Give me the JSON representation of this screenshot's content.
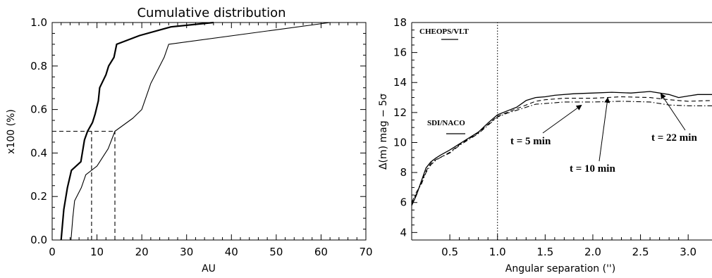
{
  "chart_data": [
    {
      "type": "line",
      "title": "Cumulative distribution",
      "xlabel": "AU",
      "ylabel": "x100 (%)",
      "xlim": [
        0,
        70
      ],
      "ylim": [
        0,
        1
      ],
      "xticks": [
        0,
        10,
        20,
        30,
        40,
        50,
        60,
        70
      ],
      "yticks": [
        0.0,
        0.2,
        0.4,
        0.6,
        0.8,
        1.0
      ],
      "xtick_labels": [
        "0",
        "10",
        "20",
        "30",
        "40",
        "50",
        "60",
        "70"
      ],
      "ytick_labels": [
        "0.0",
        "0.2",
        "0.4",
        "0.6",
        "0.8",
        "1.0"
      ],
      "grid": false,
      "series": [
        {
          "style": "thick-solid",
          "points": [
            [
              2,
              0
            ],
            [
              2.6,
              0.14
            ],
            [
              3.4,
              0.24
            ],
            [
              4.3,
              0.32
            ],
            [
              6.4,
              0.36
            ],
            [
              7.2,
              0.46
            ],
            [
              7.9,
              0.5
            ],
            [
              9,
              0.54
            ],
            [
              9.6,
              0.58
            ],
            [
              10.3,
              0.64
            ],
            [
              10.6,
              0.7
            ],
            [
              12,
              0.76
            ],
            [
              12.6,
              0.8
            ],
            [
              13.8,
              0.84
            ],
            [
              14.4,
              0.9
            ],
            [
              19.5,
              0.94
            ],
            [
              26.5,
              0.98
            ],
            [
              36,
              1.0
            ]
          ]
        },
        {
          "style": "thin-solid",
          "points": [
            [
              4.2,
              0
            ],
            [
              4.6,
              0.1
            ],
            [
              5,
              0.18
            ],
            [
              6.5,
              0.24
            ],
            [
              7.5,
              0.3
            ],
            [
              10,
              0.34
            ],
            [
              12.5,
              0.42
            ],
            [
              14,
              0.5
            ],
            [
              18,
              0.56
            ],
            [
              20,
              0.6
            ],
            [
              21,
              0.66
            ],
            [
              22,
              0.72
            ],
            [
              23,
              0.76
            ],
            [
              24,
              0.8
            ],
            [
              25,
              0.84
            ],
            [
              26,
              0.9
            ],
            [
              62,
              1.0
            ]
          ]
        },
        {
          "style": "dashed",
          "points": [
            [
              0,
              0.5
            ],
            [
              14,
              0.5
            ]
          ]
        },
        {
          "style": "dashed",
          "points": [
            [
              8.8,
              0
            ],
            [
              8.8,
              0.5
            ]
          ]
        },
        {
          "style": "dashed",
          "points": [
            [
              14,
              0
            ],
            [
              14,
              0.5
            ]
          ]
        }
      ]
    },
    {
      "type": "line",
      "title": "",
      "xlabel": "Angular separation ('')",
      "ylabel": "Δ(m) mag − 5σ",
      "xlim": [
        0.1,
        3.25
      ],
      "ylim": [
        3.5,
        18
      ],
      "xticks": [
        0.5,
        1.0,
        1.5,
        2.0,
        2.5,
        3.0
      ],
      "yticks": [
        4,
        6,
        8,
        10,
        12,
        14,
        16,
        18
      ],
      "xtick_labels": [
        "0.5",
        "1.0",
        "1.5",
        "2.0",
        "2.5",
        "3.0"
      ],
      "ytick_labels": [
        "4",
        "6",
        "8",
        "10",
        "12",
        "14",
        "16",
        "18"
      ],
      "grid": false,
      "series": [
        {
          "name": "t = 22 min",
          "style": "solid",
          "points": [
            [
              0.1,
              5.8
            ],
            [
              0.15,
              6.5
            ],
            [
              0.2,
              7.4
            ],
            [
              0.25,
              8.3
            ],
            [
              0.3,
              8.7
            ],
            [
              0.35,
              8.95
            ],
            [
              0.4,
              9.15
            ],
            [
              0.5,
              9.5
            ],
            [
              0.6,
              9.9
            ],
            [
              0.7,
              10.3
            ],
            [
              0.8,
              10.7
            ],
            [
              0.9,
              11.3
            ],
            [
              1.0,
              11.85
            ],
            [
              1.1,
              12.1
            ],
            [
              1.2,
              12.35
            ],
            [
              1.3,
              12.8
            ],
            [
              1.4,
              13.0
            ],
            [
              1.5,
              13.05
            ],
            [
              1.6,
              13.15
            ],
            [
              1.8,
              13.25
            ],
            [
              2.0,
              13.3
            ],
            [
              2.2,
              13.35
            ],
            [
              2.4,
              13.3
            ],
            [
              2.6,
              13.4
            ],
            [
              2.8,
              13.2
            ],
            [
              2.9,
              13.0
            ],
            [
              3.0,
              13.1
            ],
            [
              3.1,
              13.2
            ],
            [
              3.25,
              13.2
            ]
          ]
        },
        {
          "name": "t = 10 min",
          "style": "dashed",
          "points": [
            [
              0.1,
              5.9
            ],
            [
              0.15,
              6.6
            ],
            [
              0.2,
              7.3
            ],
            [
              0.25,
              8.1
            ],
            [
              0.3,
              8.6
            ],
            [
              0.35,
              8.85
            ],
            [
              0.4,
              9.0
            ],
            [
              0.5,
              9.35
            ],
            [
              0.6,
              9.85
            ],
            [
              0.7,
              10.25
            ],
            [
              0.8,
              10.65
            ],
            [
              0.9,
              11.2
            ],
            [
              1.0,
              11.75
            ],
            [
              1.1,
              12.0
            ],
            [
              1.2,
              12.25
            ],
            [
              1.3,
              12.5
            ],
            [
              1.4,
              12.75
            ],
            [
              1.5,
              12.85
            ],
            [
              1.7,
              12.95
            ],
            [
              2.0,
              12.95
            ],
            [
              2.3,
              13.05
            ],
            [
              2.6,
              13.0
            ],
            [
              2.8,
              12.85
            ],
            [
              3.0,
              12.75
            ],
            [
              3.25,
              12.8
            ]
          ]
        },
        {
          "name": "t = 5 min",
          "style": "dash-dot",
          "points": [
            [
              0.1,
              6.0
            ],
            [
              0.15,
              6.7
            ],
            [
              0.2,
              7.2
            ],
            [
              0.25,
              8.0
            ],
            [
              0.3,
              8.5
            ],
            [
              0.35,
              8.8
            ],
            [
              0.4,
              9.0
            ],
            [
              0.5,
              9.3
            ],
            [
              0.6,
              9.8
            ],
            [
              0.7,
              10.2
            ],
            [
              0.8,
              10.6
            ],
            [
              0.9,
              11.15
            ],
            [
              1.0,
              11.7
            ],
            [
              1.1,
              11.95
            ],
            [
              1.2,
              12.15
            ],
            [
              1.3,
              12.35
            ],
            [
              1.4,
              12.55
            ],
            [
              1.5,
              12.6
            ],
            [
              1.7,
              12.7
            ],
            [
              2.0,
              12.7
            ],
            [
              2.3,
              12.75
            ],
            [
              2.6,
              12.7
            ],
            [
              2.8,
              12.5
            ],
            [
              3.0,
              12.45
            ],
            [
              3.25,
              12.45
            ]
          ]
        },
        {
          "style": "dotted",
          "points": [
            [
              1.0,
              3.5
            ],
            [
              1.0,
              18
            ]
          ]
        }
      ],
      "annotations": {
        "cheops": "CHEOPS/VLT",
        "sdi": "SDI/NACO",
        "t5": "t = 5 min",
        "t10": "t = 10 min",
        "t22": "t = 22 min"
      }
    }
  ]
}
